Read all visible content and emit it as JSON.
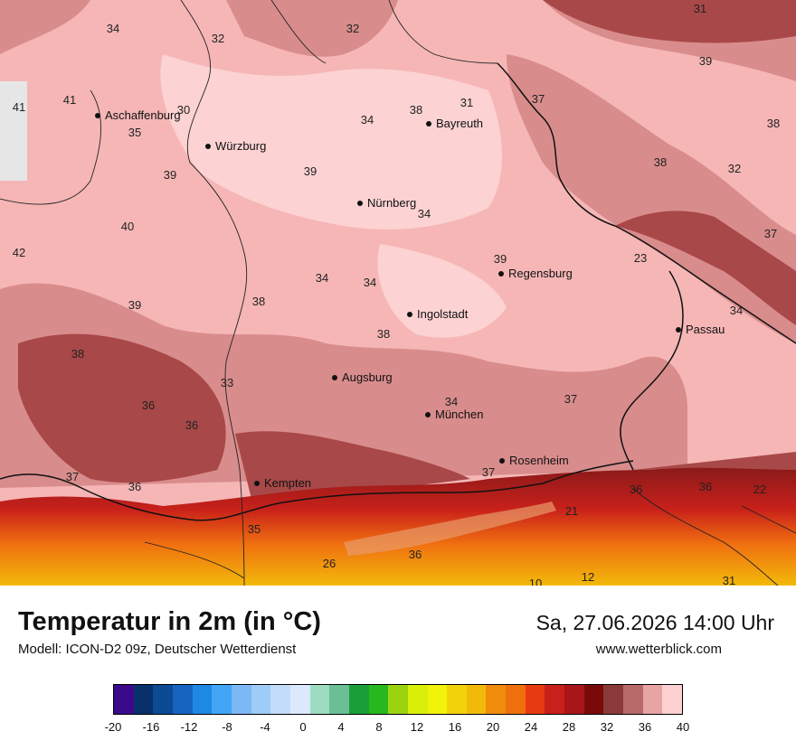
{
  "title": "Temperatur in 2m (in °C)",
  "subtitle": "Modell: ICON-D2 09z, Deutscher Wetterdienst",
  "datetime": "Sa, 27.06.2026 14:00 Uhr",
  "site": "www.wetterblick.com",
  "cities": [
    {
      "name": "Aschaffenburg"
    },
    {
      "name": "Würzburg"
    },
    {
      "name": "Bayreuth"
    },
    {
      "name": "Nürnberg"
    },
    {
      "name": "Regensburg"
    },
    {
      "name": "Ingolstadt"
    },
    {
      "name": "Passau"
    },
    {
      "name": "Augsburg"
    },
    {
      "name": "München"
    },
    {
      "name": "Rosenheim"
    },
    {
      "name": "Kempten"
    }
  ],
  "temp_labels": [
    "34",
    "32",
    "32",
    "31",
    "41",
    "41",
    "30",
    "35",
    "38",
    "34",
    "31",
    "37",
    "39",
    "38",
    "39",
    "38",
    "32",
    "39",
    "34",
    "40",
    "42",
    "37",
    "39",
    "34",
    "38",
    "34",
    "23",
    "39",
    "34",
    "38",
    "38",
    "33",
    "37",
    "36",
    "34",
    "36",
    "37",
    "36",
    "37",
    "36",
    "35",
    "36",
    "22",
    "36",
    "12",
    "10",
    "31",
    "26",
    "21"
  ],
  "legend": {
    "ticks": [
      "-20",
      "-16",
      "-12",
      "-8",
      "-4",
      "0",
      "4",
      "8",
      "12",
      "16",
      "20",
      "24",
      "28",
      "32",
      "36",
      "40"
    ],
    "colors": [
      "#3b0a8a",
      "#08306b",
      "#0b4a94",
      "#1565c0",
      "#1e88e5",
      "#42a5f5",
      "#7cb8f5",
      "#9ecbf7",
      "#c2dcfa",
      "#dce9fc",
      "#9ddcc1",
      "#6bbf96",
      "#1a9e3a",
      "#26b81e",
      "#9bd40f",
      "#d9ef0a",
      "#f2f20a",
      "#f2d20a",
      "#f2b90a",
      "#f08c0c",
      "#f07010",
      "#e83a10",
      "#c8201a",
      "#a8161a",
      "#7a0a0a",
      "#8b3a3a",
      "#b86a6a",
      "#e8a3a3",
      "#fcd0d0"
    ]
  }
}
